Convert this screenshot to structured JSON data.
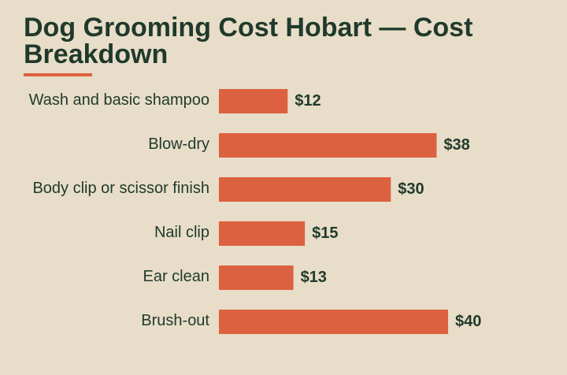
{
  "chart_data": {
    "type": "bar",
    "orientation": "horizontal",
    "title": "Dog Grooming Cost Hobart — Cost Breakdown",
    "categories": [
      "Wash and basic shampoo",
      "Blow-dry",
      "Body clip or scissor finish",
      "Nail clip",
      "Ear clean",
      "Brush-out"
    ],
    "values": [
      12,
      38,
      30,
      15,
      13,
      40
    ],
    "value_labels": [
      "$12",
      "$38",
      "$30",
      "$15",
      "$13",
      "$40"
    ],
    "xlim": [
      0,
      40
    ],
    "grid": false,
    "legend": "none",
    "colors": {
      "background": "#e8ddc8",
      "bar": "#dc6140",
      "text": "#1f3a2b",
      "accent": "#dc6140"
    }
  }
}
